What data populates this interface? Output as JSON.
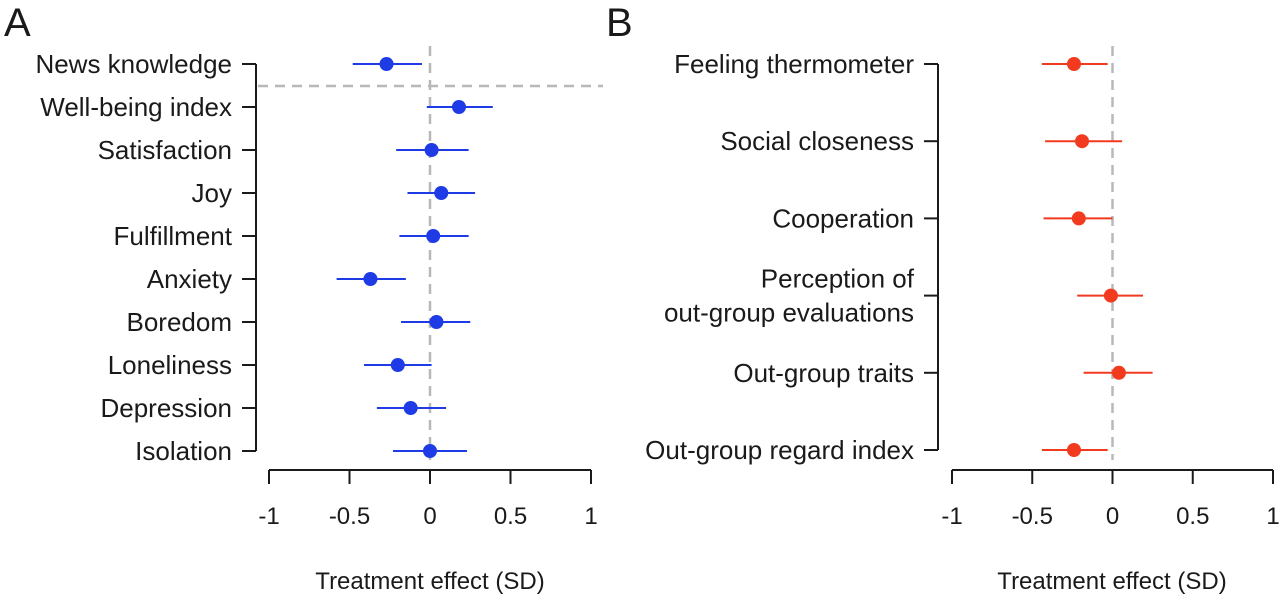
{
  "chart_data": [
    {
      "type": "forest",
      "panel_label": "A",
      "xlabel": "Treatment effect (SD)",
      "xlim": [
        -1,
        1
      ],
      "xticks": [
        "-1",
        "-0.5",
        "0",
        "0.5",
        "1"
      ],
      "color": "#1f3be6",
      "items": [
        {
          "label": "News knowledge",
          "estimate": -0.27,
          "ci": [
            -0.48,
            -0.05
          ]
        },
        {
          "label": "Well-being index",
          "estimate": 0.18,
          "ci": [
            -0.02,
            0.39
          ]
        },
        {
          "label": "Satisfaction",
          "estimate": 0.01,
          "ci": [
            -0.21,
            0.24
          ]
        },
        {
          "label": "Joy",
          "estimate": 0.07,
          "ci": [
            -0.14,
            0.28
          ]
        },
        {
          "label": "Fulfillment",
          "estimate": 0.02,
          "ci": [
            -0.19,
            0.24
          ]
        },
        {
          "label": "Anxiety",
          "estimate": -0.37,
          "ci": [
            -0.58,
            -0.15
          ]
        },
        {
          "label": "Boredom",
          "estimate": 0.04,
          "ci": [
            -0.18,
            0.25
          ]
        },
        {
          "label": "Loneliness",
          "estimate": -0.2,
          "ci": [
            -0.41,
            0.01
          ]
        },
        {
          "label": "Depression",
          "estimate": -0.12,
          "ci": [
            -0.33,
            0.1
          ]
        },
        {
          "label": "Isolation",
          "estimate": 0.0,
          "ci": [
            -0.23,
            0.23
          ]
        }
      ]
    },
    {
      "type": "forest",
      "panel_label": "B",
      "xlabel": "Treatment effect (SD)",
      "xlim": [
        -1,
        1
      ],
      "xticks": [
        "-1",
        "-0.5",
        "0",
        "0.5",
        "1"
      ],
      "color": "#f23a1e",
      "items": [
        {
          "label": "Feeling thermometer",
          "estimate": -0.24,
          "ci": [
            -0.44,
            -0.03
          ]
        },
        {
          "label": "Social closeness",
          "estimate": -0.19,
          "ci": [
            -0.42,
            0.06
          ]
        },
        {
          "label": "Cooperation",
          "estimate": -0.21,
          "ci": [
            -0.43,
            0.0
          ]
        },
        {
          "label": "Perception of out-group evaluations",
          "label_lines": [
            "Perception of",
            "out-group evaluations"
          ],
          "estimate": -0.01,
          "ci": [
            -0.22,
            0.19
          ]
        },
        {
          "label": "Out-group traits",
          "estimate": 0.04,
          "ci": [
            -0.18,
            0.25
          ]
        },
        {
          "label": "Out-group regard index",
          "estimate": -0.24,
          "ci": [
            -0.44,
            -0.03
          ]
        }
      ]
    }
  ]
}
